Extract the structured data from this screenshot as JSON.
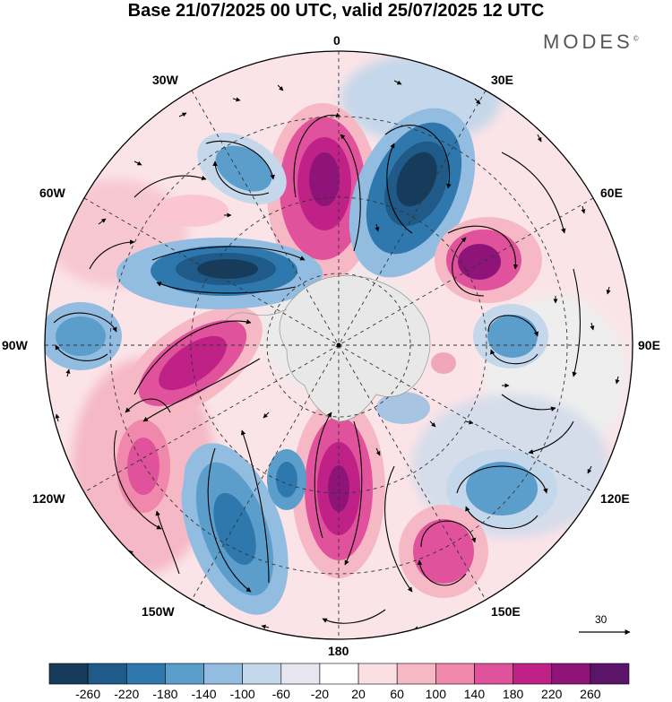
{
  "title": "Base 21/07/2025 00 UTC, valid 25/07/2025 12 UTC",
  "brand": "MODES",
  "brand_mark": "©",
  "projection": "south-polar-stereographic",
  "longitude_labels": {
    "lon_0": "0",
    "lon_30e": "30E",
    "lon_60e": "60E",
    "lon_90e": "90E",
    "lon_120e": "120E",
    "lon_150e": "150E",
    "lon_180": "180",
    "lon_150w": "150W",
    "lon_120w": "120W",
    "lon_90w": "90W",
    "lon_60w": "60W",
    "lon_30w": "30W"
  },
  "reference_vector": "30",
  "colorbar": {
    "labels": [
      "-260",
      "-220",
      "-180",
      "-140",
      "-100",
      "-60",
      "-20",
      "20",
      "60",
      "100",
      "140",
      "180",
      "220",
      "260"
    ],
    "colors": [
      "#173b5a",
      "#1f5a88",
      "#2f78ad",
      "#5b9dcb",
      "#92bde0",
      "#c5d7ea",
      "#e6e6f0",
      "#ffffff",
      "#fbe0e3",
      "#f7b8c6",
      "#ef88aa",
      "#e0529b",
      "#bf2186",
      "#8e1479",
      "#5a1468"
    ]
  },
  "anomaly_centres": [
    {
      "sign": "positive",
      "level": 220,
      "lon": "0"
    },
    {
      "sign": "negative",
      "level": -260,
      "lon": "30E"
    },
    {
      "sign": "positive",
      "level": 220,
      "lon": "60E"
    },
    {
      "sign": "negative",
      "level": -140,
      "lon": "90E"
    },
    {
      "sign": "negative",
      "level": -140,
      "lon": "120E"
    },
    {
      "sign": "positive",
      "level": 180,
      "lon": "150E"
    },
    {
      "sign": "positive",
      "level": 220,
      "lon": "180"
    },
    {
      "sign": "negative",
      "level": -140,
      "lon": "150W"
    },
    {
      "sign": "positive",
      "level": 180,
      "lon": "120W"
    },
    {
      "sign": "positive",
      "level": 220,
      "lon": "90W"
    },
    {
      "sign": "negative",
      "level": -260,
      "lon": "60W"
    },
    {
      "sign": "negative",
      "level": -100,
      "lon": "30W"
    }
  ]
}
